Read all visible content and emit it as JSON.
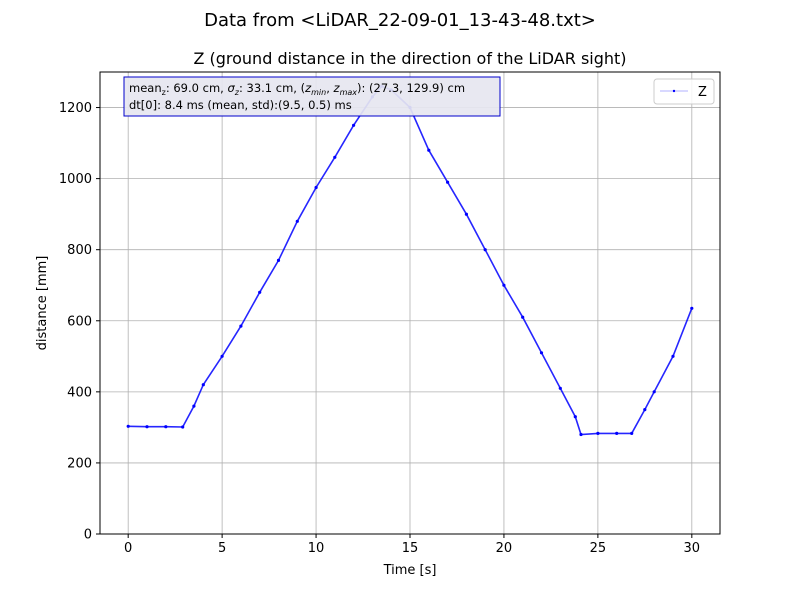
{
  "figure": {
    "suptitle": "Data from <LiDAR_22-09-01_13-43-48.txt>"
  },
  "chart_data": {
    "type": "line",
    "title": "Z (ground distance in the direction of the LiDAR sight)",
    "xlabel": "Time [s]",
    "ylabel": "distance [mm]",
    "xlim": [
      -1.5,
      31.5
    ],
    "ylim": [
      0,
      1300
    ],
    "xticks": [
      0,
      5,
      10,
      15,
      20,
      25,
      30
    ],
    "yticks": [
      0,
      200,
      400,
      600,
      800,
      1000,
      1200
    ],
    "grid": true,
    "legend": {
      "position": "top-right",
      "entries": [
        "Z"
      ]
    },
    "series": [
      {
        "name": "Z",
        "color": "#0000ff",
        "marker": "dot",
        "x": [
          0,
          1,
          2,
          2.9,
          3.5,
          4,
          5,
          6,
          7,
          8,
          9,
          10,
          11,
          12,
          13,
          13.5,
          14,
          15,
          16,
          17,
          18,
          19,
          20,
          21,
          22,
          23,
          23.8,
          24.1,
          25,
          26,
          26.8,
          27.5,
          28,
          29,
          30
        ],
        "y": [
          303,
          302,
          302,
          301,
          360,
          420,
          500,
          585,
          680,
          770,
          880,
          975,
          1060,
          1150,
          1230,
          1260,
          1250,
          1200,
          1080,
          990,
          900,
          800,
          700,
          610,
          510,
          410,
          330,
          280,
          283,
          283,
          283,
          350,
          400,
          500,
          635
        ]
      }
    ],
    "annotation": {
      "line1": "mean",
      "line1_sub": "z",
      "line1_val": ": 69.0 cm, ",
      "sigma": "σ",
      "sigma_sub": "z",
      "sigma_val": ": 33.1 cm, (",
      "zmin": "z",
      "zmin_sub": "min",
      "comma": ", ",
      "zmax": "z",
      "zmax_sub": "max",
      "range_val": "): (27.3, 129.9) cm",
      "line2": "dt[0]: 8.4 ms (mean, std):(9.5, 0.5) ms"
    }
  }
}
